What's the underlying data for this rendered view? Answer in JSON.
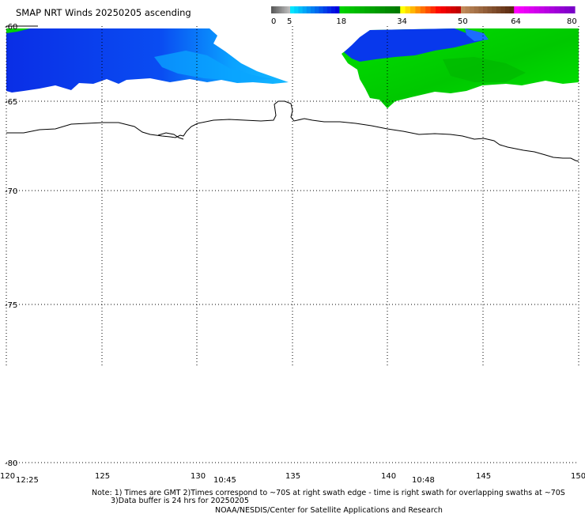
{
  "title": "SMAP NRT Winds 20250205 ascending",
  "colorbar": {
    "tick_labels": [
      "0",
      "5",
      "18",
      "34",
      "50",
      "64",
      "80"
    ],
    "stops": [
      {
        "from": 0,
        "to": 5,
        "colors": [
          "#5a5a5a",
          "#bdbdbd"
        ]
      },
      {
        "from": 5,
        "to": 18,
        "colors": [
          "#00e6ff",
          "#0000e0"
        ]
      },
      {
        "from": 18,
        "to": 34,
        "colors": [
          "#00d200",
          "#007a00"
        ]
      },
      {
        "from": 34,
        "to": 50,
        "colors": [
          "#ffff00",
          "#ff7a00",
          "#ff0000",
          "#c00000"
        ]
      },
      {
        "from": 50,
        "to": 64,
        "colors": [
          "#c08a5a",
          "#5a2a10"
        ]
      },
      {
        "from": 64,
        "to": 80,
        "colors": [
          "#ff00ff",
          "#7a00c8"
        ]
      }
    ]
  },
  "map": {
    "lat_labels": [
      "-60",
      "-65",
      "-70",
      "-75",
      "-80"
    ],
    "lon_labels": [
      "120",
      "125",
      "130",
      "135",
      "140",
      "145",
      "150"
    ],
    "time_labels": [
      "12:25",
      "10:45",
      "10:48"
    ]
  },
  "notes": {
    "line1": "Note: 1) Times are GMT 2)Times correspond to ~70S at right swath edge - time is right swath for overlapping swaths at ~70S",
    "line2": "3)Data buffer is 24 hrs for 20250205",
    "line3": "NOAA/NESDIS/Center for Satellite Applications and Research"
  },
  "colors": {
    "coastline": "#000000",
    "grid": "#000000",
    "low_wind_blue": "#0a3cf0",
    "mid_wind_green": "#00dc00"
  }
}
